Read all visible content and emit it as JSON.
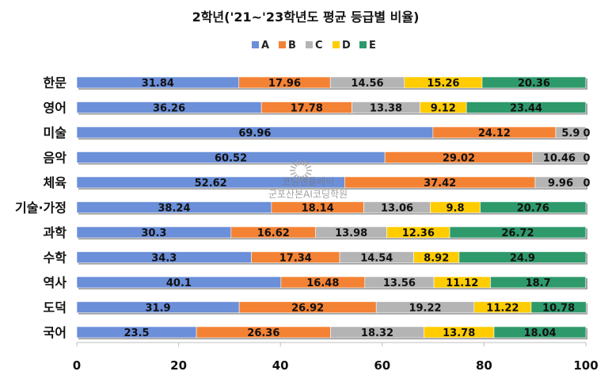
{
  "chart_data": {
    "type": "bar",
    "orientation": "horizontal",
    "stacked": true,
    "title": "2학년('21~'23학년도 평균 등급별 비율)",
    "categories": [
      "한문",
      "영어",
      "미술",
      "음악",
      "체육",
      "기술·가정",
      "과학",
      "수학",
      "역사",
      "도덕",
      "국어"
    ],
    "series": [
      {
        "name": "A",
        "color": "#6B8FD9",
        "values": [
          31.84,
          36.26,
          69.96,
          60.52,
          52.62,
          38.24,
          30.3,
          34.3,
          40.1,
          31.9,
          23.5
        ]
      },
      {
        "name": "B",
        "color": "#F48234",
        "values": [
          17.96,
          17.78,
          24.12,
          29.02,
          37.42,
          18.14,
          16.62,
          17.34,
          16.48,
          26.92,
          26.36
        ]
      },
      {
        "name": "C",
        "color": "#B4B4B4",
        "values": [
          14.56,
          13.38,
          5.9,
          10.46,
          9.96,
          13.06,
          13.98,
          14.54,
          13.56,
          19.22,
          18.32
        ]
      },
      {
        "name": "D",
        "color": "#FFCC00",
        "values": [
          15.26,
          9.12,
          0,
          0,
          0,
          9.8,
          12.36,
          8.92,
          11.12,
          11.22,
          13.78
        ]
      },
      {
        "name": "E",
        "color": "#2E9A6B",
        "values": [
          20.36,
          23.44,
          0,
          0,
          0,
          20.76,
          26.72,
          24.9,
          18.7,
          10.78,
          18.04
        ]
      }
    ],
    "xlim": [
      0,
      100
    ],
    "xticks": [
      0,
      20,
      40,
      60,
      80,
      100
    ],
    "legend_position": "top",
    "grid": false
  },
  "watermark": {
    "line1": "코딩앤플레이",
    "line2": "군포산본AI코딩학원"
  }
}
